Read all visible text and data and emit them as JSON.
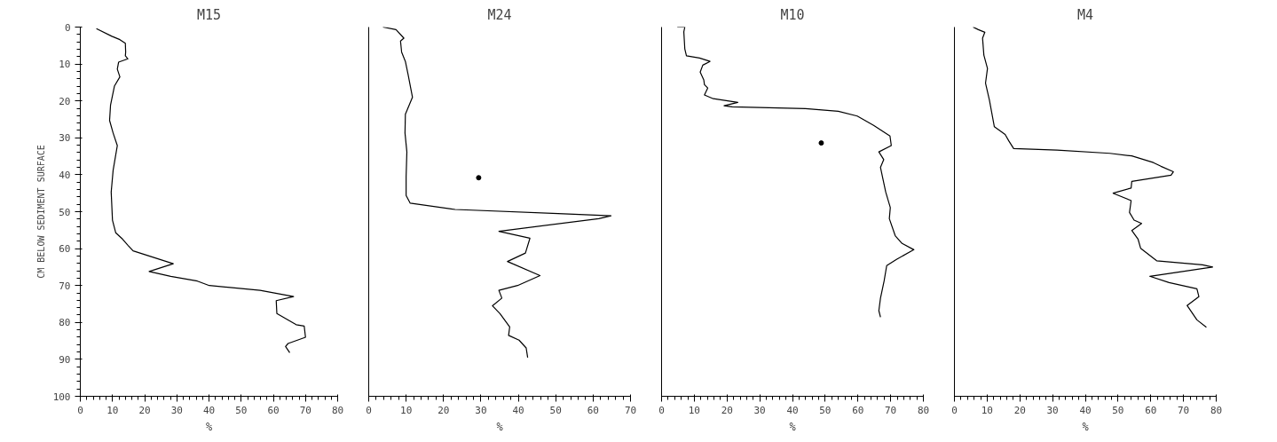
{
  "chart_data": [
    {
      "type": "line",
      "title": "M15",
      "xlabel": "%",
      "ylabel": "CM BELOW SEDIMENT SURFACE",
      "xlim": [
        0,
        80
      ],
      "xticks": [
        0,
        10,
        20,
        30,
        40,
        50,
        60,
        70,
        80
      ],
      "ylim": [
        100,
        0
      ],
      "yticks": [
        0,
        10,
        20,
        30,
        40,
        50,
        60,
        70,
        80,
        90,
        100
      ],
      "grid": false,
      "marker": "none",
      "line_style": "solid",
      "series": [
        {
          "color": "#000000",
          "x": [
            5.0,
            9.8,
            12.3,
            14.0,
            14.1,
            14.0,
            14.8,
            11.9,
            11.5,
            12.3,
            10.6,
            9.4,
            9.1,
            10.2,
            11.5,
            10.2,
            9.6,
            10.0,
            11.0,
            13.1,
            14.8,
            16.4,
            28.9,
            21.4,
            28.1,
            36.4,
            40.1,
            55.9,
            66.3,
            60.9,
            61.1,
            67.1,
            69.6,
            70.0,
            64.6,
            63.8,
            65.1
          ],
          "values": [
            0.4,
            2.5,
            3.4,
            4.4,
            6.8,
            7.8,
            8.6,
            9.5,
            11.4,
            13.5,
            16.0,
            21.1,
            25.3,
            28.7,
            32.1,
            38.8,
            44.7,
            52.3,
            55.7,
            57.4,
            59.1,
            60.6,
            64.1,
            66.2,
            67.5,
            68.8,
            70.0,
            71.3,
            73.0,
            74.1,
            77.6,
            80.6,
            81.0,
            84.0,
            85.7,
            86.5,
            88.2
          ]
        }
      ]
    },
    {
      "type": "line",
      "title": "M24",
      "xlabel": "%",
      "xlim": [
        0,
        70
      ],
      "xticks": [
        0,
        10,
        20,
        30,
        40,
        50,
        60,
        70
      ],
      "ylim": [
        100,
        0
      ],
      "yticks": [
        0,
        10,
        20,
        30,
        40,
        50,
        60,
        70,
        80,
        90,
        100
      ],
      "tick_labels": "x",
      "grid": false,
      "marker": "none",
      "line_style": "solid",
      "series": [
        {
          "color": "#000000",
          "x": [
            3.8,
            7.3,
            9.4,
            8.5,
            8.8,
            9.8,
            10.5,
            11.7,
            9.8,
            9.7,
            10.2,
            10.0,
            10.0,
            11.1,
            23.1,
            50.6,
            64.8,
            61.5,
            34.8,
            43.1,
            41.9,
            37.1,
            45.8,
            39.8,
            34.8,
            35.6,
            33.1,
            35.1,
            37.7,
            37.4,
            40.2,
            42.1,
            42.5
          ],
          "values": [
            0.0,
            0.7,
            3.0,
            3.8,
            6.8,
            9.3,
            12.7,
            19.0,
            23.6,
            28.7,
            33.8,
            40.5,
            45.6,
            47.7,
            49.4,
            50.5,
            51.1,
            51.9,
            55.3,
            57.2,
            61.2,
            63.5,
            67.3,
            70.0,
            71.3,
            73.4,
            75.5,
            77.6,
            81.2,
            83.5,
            84.8,
            86.9,
            89.5
          ]
        },
        {
          "type": "scatter",
          "marker": "circle",
          "color": "#000000",
          "x": [
            29.4
          ],
          "values": [
            40.8
          ]
        }
      ]
    },
    {
      "type": "line",
      "title": "M10",
      "xlabel": "%",
      "xlim": [
        0,
        80
      ],
      "xticks": [
        0,
        10,
        20,
        30,
        40,
        50,
        60,
        70,
        80
      ],
      "ylim": [
        100,
        0
      ],
      "yticks": [
        0,
        10,
        20,
        30,
        40,
        50,
        60,
        70,
        80,
        90,
        100
      ],
      "tick_labels": "x",
      "grid": false,
      "marker": "none",
      "line_style": "solid",
      "series": [
        {
          "color": "#000000",
          "x": [
            4.8,
            7.1,
            6.8,
            7.1,
            7.6,
            11.6,
            14.8,
            12.6,
            11.8,
            12.9,
            13.1,
            14.1,
            13.1,
            15.8,
            23.3,
            19.1,
            21.6,
            44.0,
            54.0,
            59.8,
            64.8,
            69.8,
            70.2,
            66.4,
            67.9,
            66.9,
            67.7,
            68.5,
            69.9,
            69.6,
            71.4,
            73.5,
            77.1,
            71.8,
            68.8,
            68.0,
            66.9,
            66.4,
            66.9
          ],
          "values": [
            0.0,
            0.0,
            1.3,
            5.9,
            7.8,
            8.4,
            9.3,
            10.3,
            12.2,
            14.3,
            15.6,
            16.5,
            18.4,
            19.4,
            20.4,
            21.3,
            21.6,
            22.1,
            22.8,
            24.1,
            26.6,
            29.5,
            32.1,
            33.8,
            35.9,
            38.0,
            41.4,
            44.7,
            48.9,
            51.9,
            56.5,
            58.6,
            60.3,
            62.9,
            64.6,
            68.8,
            73.4,
            76.8,
            78.6
          ]
        },
        {
          "type": "scatter",
          "marker": "circle",
          "color": "#000000",
          "x": [
            48.8
          ],
          "values": [
            31.4
          ]
        }
      ]
    },
    {
      "type": "line",
      "title": "M4",
      "xlabel": "%",
      "xlim": [
        0,
        80
      ],
      "xticks": [
        0,
        10,
        20,
        30,
        40,
        50,
        60,
        70,
        80
      ],
      "ylim": [
        100,
        0
      ],
      "yticks": [
        0,
        10,
        20,
        30,
        40,
        50,
        60,
        70,
        80,
        90,
        100
      ],
      "tick_labels": "x",
      "grid": false,
      "marker": "none",
      "line_style": "solid",
      "series": [
        {
          "color": "#000000",
          "x": [
            5.7,
            7.3,
            9.3,
            8.6,
            9.0,
            10.1,
            9.5,
            10.7,
            12.2,
            15.5,
            16.6,
            18.1,
            31.4,
            47.5,
            54.2,
            60.8,
            63.1,
            66.9,
            66.2,
            54.2,
            54.0,
            48.5,
            54.0,
            53.5,
            54.9,
            57.2,
            54.2,
            56.1,
            56.9,
            61.8,
            75.8,
            78.9,
            59.7,
            65.6,
            74.1,
            74.7,
            71.1,
            74.1,
            77.0
          ],
          "values": [
            0.0,
            0.7,
            1.4,
            3.0,
            7.6,
            11.2,
            15.2,
            19.8,
            27.0,
            29.1,
            30.8,
            32.9,
            33.3,
            34.2,
            34.9,
            36.7,
            37.7,
            39.2,
            40.1,
            41.8,
            43.6,
            45.0,
            47.0,
            50.2,
            52.3,
            53.2,
            55.1,
            57.4,
            59.9,
            63.3,
            64.4,
            65.0,
            67.5,
            69.2,
            70.9,
            73.0,
            75.4,
            79.3,
            81.3
          ]
        }
      ]
    }
  ]
}
